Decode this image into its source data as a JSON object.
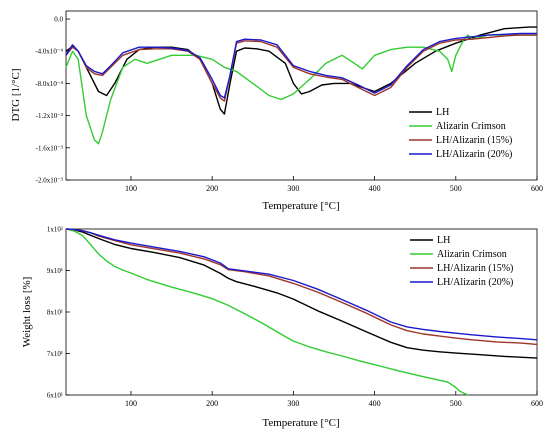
{
  "chart_data": [
    {
      "type": "line",
      "xlabel": "Temperature [°C]",
      "ylabel": "DTG [1/°C]",
      "xlim": [
        20,
        600
      ],
      "ylim": [
        -0.002,
        0.0001
      ],
      "x_ticks": [
        100,
        200,
        300,
        400,
        500,
        600
      ],
      "x_tick_labels": [
        "100",
        "200",
        "300",
        "400",
        "500",
        "600"
      ],
      "y_ticks": [
        0,
        -0.0004,
        -0.0008,
        -0.0012,
        -0.0016,
        -0.002
      ],
      "y_tick_labels": [
        "0.0",
        "-4.0x10⁻⁴",
        "-8.0x10⁻⁴",
        "-1.2x10⁻³",
        "-1.6x10⁻³",
        "-2.0x10⁻³"
      ],
      "legend_position": "right",
      "series": [
        {
          "name": "LH",
          "color": "#000000",
          "x": [
            20,
            28,
            35,
            45,
            60,
            70,
            80,
            95,
            110,
            130,
            150,
            170,
            185,
            200,
            210,
            215,
            222,
            230,
            240,
            255,
            270,
            290,
            300,
            310,
            320,
            335,
            350,
            370,
            385,
            400,
            420,
            450,
            475,
            500,
            530,
            560,
            590,
            600
          ],
          "y": [
            -0.0004,
            -0.00034,
            -0.0004,
            -0.0006,
            -0.0009,
            -0.00095,
            -0.0008,
            -0.0005,
            -0.00038,
            -0.00035,
            -0.00035,
            -0.00038,
            -0.0005,
            -0.0008,
            -0.00112,
            -0.00118,
            -0.0008,
            -0.0004,
            -0.00036,
            -0.00037,
            -0.0004,
            -0.00055,
            -0.0008,
            -0.00093,
            -0.0009,
            -0.00082,
            -0.0008,
            -0.0008,
            -0.00085,
            -0.0009,
            -0.0008,
            -0.00055,
            -0.0004,
            -0.0003,
            -0.0002,
            -0.00012,
            -0.0001,
            -0.0001
          ]
        },
        {
          "name": "Alizarin Crimson",
          "color": "#33cc33",
          "x": [
            20,
            28,
            35,
            45,
            55,
            60,
            65,
            75,
            90,
            105,
            120,
            135,
            150,
            165,
            180,
            200,
            215,
            230,
            250,
            270,
            285,
            300,
            320,
            340,
            360,
            375,
            385,
            400,
            420,
            440,
            460,
            480,
            490,
            495,
            500,
            510,
            515,
            520,
            540,
            560,
            580,
            600
          ],
          "y": [
            -0.0006,
            -0.0004,
            -0.0005,
            -0.0012,
            -0.0015,
            -0.00155,
            -0.0014,
            -0.001,
            -0.0006,
            -0.0005,
            -0.00055,
            -0.0005,
            -0.00045,
            -0.00045,
            -0.00045,
            -0.0005,
            -0.0006,
            -0.00065,
            -0.0008,
            -0.00095,
            -0.001,
            -0.00093,
            -0.00075,
            -0.00055,
            -0.00045,
            -0.00055,
            -0.00062,
            -0.00045,
            -0.00038,
            -0.00035,
            -0.00035,
            -0.0004,
            -0.0005,
            -0.00065,
            -0.00045,
            -0.00025,
            -0.0002,
            -0.00025,
            -0.0002,
            -0.0002,
            -0.0002,
            -0.0002
          ]
        },
        {
          "name": "LH/Alizarin (15%)",
          "color": "#a0342a",
          "x": [
            20,
            28,
            35,
            45,
            55,
            65,
            75,
            90,
            110,
            130,
            150,
            170,
            185,
            200,
            210,
            215,
            222,
            230,
            240,
            260,
            280,
            300,
            320,
            340,
            360,
            380,
            400,
            420,
            440,
            460,
            480,
            500,
            520,
            540,
            560,
            580,
            600
          ],
          "y": [
            -0.00045,
            -0.00035,
            -0.0004,
            -0.0006,
            -0.00068,
            -0.0007,
            -0.0006,
            -0.00045,
            -0.00038,
            -0.00037,
            -0.00037,
            -0.0004,
            -0.0005,
            -0.0008,
            -0.00098,
            -0.00102,
            -0.0007,
            -0.0003,
            -0.00027,
            -0.00028,
            -0.00035,
            -0.0006,
            -0.00068,
            -0.00072,
            -0.00075,
            -0.00085,
            -0.00095,
            -0.00085,
            -0.0006,
            -0.0004,
            -0.0003,
            -0.00026,
            -0.00025,
            -0.00023,
            -0.00021,
            -0.0002,
            -0.0002
          ]
        },
        {
          "name": "LH/Alizarin (20%)",
          "color": "#1a1acc",
          "x": [
            20,
            28,
            35,
            45,
            55,
            65,
            75,
            90,
            110,
            130,
            150,
            170,
            185,
            200,
            210,
            215,
            222,
            230,
            240,
            260,
            280,
            300,
            320,
            340,
            360,
            380,
            400,
            420,
            440,
            460,
            480,
            500,
            520,
            540,
            560,
            580,
            600
          ],
          "y": [
            -0.00045,
            -0.00032,
            -0.0004,
            -0.00058,
            -0.00065,
            -0.00068,
            -0.00058,
            -0.00042,
            -0.00035,
            -0.00035,
            -0.00036,
            -0.00039,
            -0.00048,
            -0.00075,
            -0.00095,
            -0.00098,
            -0.0007,
            -0.00028,
            -0.00025,
            -0.00026,
            -0.00032,
            -0.00058,
            -0.00065,
            -0.0007,
            -0.00073,
            -0.00082,
            -0.00092,
            -0.00082,
            -0.00058,
            -0.00038,
            -0.00028,
            -0.00024,
            -0.00022,
            -0.0002,
            -0.00019,
            -0.00018,
            -0.00018
          ]
        }
      ]
    },
    {
      "type": "line",
      "xlabel": "Temperature [°C]",
      "ylabel": "Weight loss [%]",
      "xlim": [
        20,
        600
      ],
      "ylim": [
        60,
        100
      ],
      "x_ticks": [
        100,
        200,
        300,
        400,
        500,
        600
      ],
      "x_tick_labels": [
        "100",
        "200",
        "300",
        "400",
        "500",
        "600"
      ],
      "y_ticks": [
        100,
        90,
        80,
        70,
        60
      ],
      "y_tick_labels": [
        "1x10²",
        "9x10¹",
        "8x10¹",
        "7x10¹",
        "6x10¹"
      ],
      "legend_position": "top-right",
      "series": [
        {
          "name": "LH",
          "color": "#000000",
          "x": [
            20,
            30,
            40,
            50,
            60,
            80,
            100,
            130,
            160,
            190,
            210,
            220,
            230,
            250,
            280,
            300,
            330,
            360,
            390,
            420,
            440,
            460,
            480,
            500,
            530,
            560,
            600
          ],
          "y": [
            100,
            99.8,
            99.3,
            98.5,
            97.7,
            96.3,
            95.3,
            94.3,
            93.1,
            91.3,
            89.3,
            88.1,
            87.3,
            86.3,
            84.6,
            83.1,
            80.3,
            77.8,
            75.2,
            72.7,
            71.4,
            70.8,
            70.4,
            70.1,
            69.7,
            69.3,
            68.9
          ]
        },
        {
          "name": "Alizarin Crimson",
          "color": "#33cc33",
          "x": [
            20,
            30,
            40,
            50,
            60,
            70,
            80,
            90,
            100,
            120,
            150,
            180,
            200,
            220,
            240,
            260,
            280,
            300,
            320,
            340,
            360,
            380,
            400,
            430,
            460,
            490,
            500,
            505,
            510,
            515
          ],
          "y": [
            100,
            99.5,
            98.5,
            96.3,
            94,
            92.3,
            91,
            90.1,
            89.4,
            87.8,
            86,
            84.4,
            83.2,
            81.6,
            79.6,
            77.5,
            75.2,
            73,
            71.6,
            70.4,
            69.4,
            68.3,
            67.3,
            65.8,
            64.4,
            63.1,
            61.8,
            60.9,
            60.4,
            60
          ]
        },
        {
          "name": "LH/Alizarin (15%)",
          "color": "#a0342a",
          "x": [
            20,
            30,
            40,
            50,
            60,
            80,
            100,
            130,
            160,
            190,
            210,
            220,
            240,
            270,
            300,
            330,
            360,
            390,
            420,
            440,
            460,
            480,
            500,
            520,
            550,
            580,
            600
          ],
          "y": [
            100,
            99.9,
            99.6,
            99.1,
            98.3,
            97.2,
            96.2,
            95.2,
            94.2,
            92.8,
            91.4,
            90.2,
            89.7,
            88.7,
            86.9,
            84.8,
            82.3,
            79.7,
            76.9,
            75.5,
            74.7,
            74.2,
            73.7,
            73.3,
            72.8,
            72.5,
            72.2
          ]
        },
        {
          "name": "LH/Alizarin (20%)",
          "color": "#1a1acc",
          "x": [
            20,
            30,
            40,
            50,
            60,
            80,
            100,
            130,
            160,
            190,
            210,
            220,
            240,
            270,
            300,
            330,
            360,
            390,
            420,
            440,
            460,
            480,
            500,
            520,
            550,
            580,
            600
          ],
          "y": [
            100,
            99.9,
            99.6,
            99.1,
            98.5,
            97.4,
            96.6,
            95.6,
            94.6,
            93.3,
            91.8,
            90.4,
            89.9,
            89.1,
            87.6,
            85.5,
            83,
            80.4,
            77.6,
            76.4,
            75.8,
            75.3,
            74.9,
            74.5,
            74,
            73.6,
            73.3
          ]
        }
      ]
    }
  ]
}
